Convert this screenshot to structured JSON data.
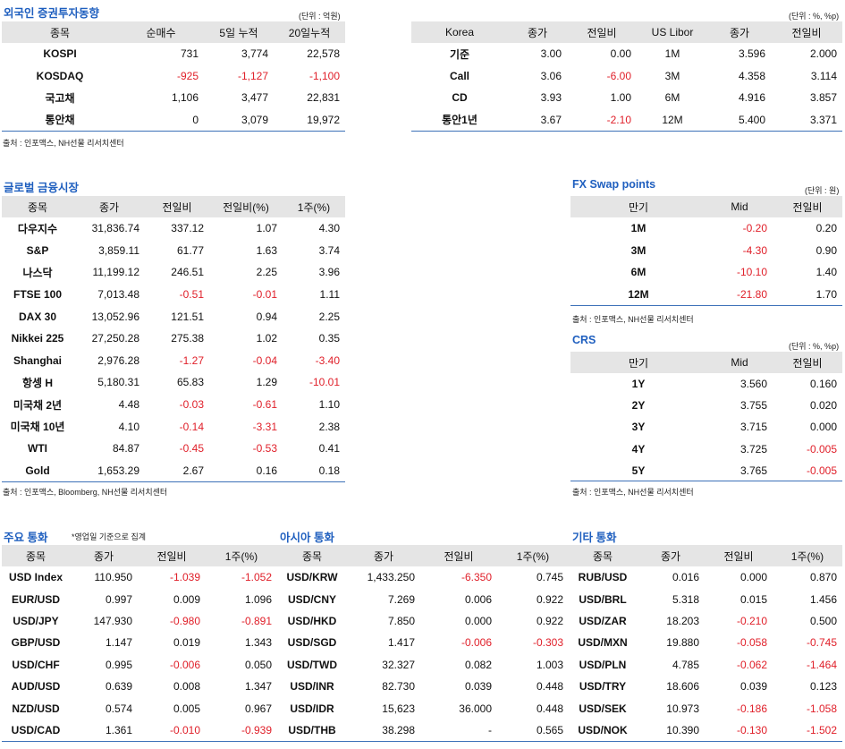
{
  "foreign": {
    "title": "외국인 증권투자동향",
    "unit": "(단위 : 억원)",
    "headers": [
      "종목",
      "순매수",
      "5일 누적",
      "20일누적"
    ],
    "rows": [
      [
        "KOSPI",
        "731",
        "3,774",
        "22,578"
      ],
      [
        "KOSDAQ",
        "-925",
        "-1,127",
        "-1,100"
      ],
      [
        "국고채",
        "1,106",
        "3,477",
        "22,831"
      ],
      [
        "통안채",
        "0",
        "3,079",
        "19,972"
      ]
    ],
    "source": "출처 : 인포맥스, NH선물 리서치센터"
  },
  "rates": {
    "unit": "(단위 : %, %p)",
    "headers": [
      "Korea",
      "종가",
      "전일비",
      "US Libor",
      "종가",
      "전일비"
    ],
    "rows": [
      [
        "기준",
        "3.00",
        "0.00",
        "1M",
        "3.596",
        "2.000"
      ],
      [
        "Call",
        "3.06",
        "-6.00",
        "3M",
        "4.358",
        "3.114"
      ],
      [
        "CD",
        "3.93",
        "1.00",
        "6M",
        "4.916",
        "3.857"
      ],
      [
        "통안1년",
        "3.67",
        "-2.10",
        "12M",
        "5.400",
        "3.371"
      ]
    ]
  },
  "global": {
    "title": "글로벌 금융시장",
    "headers": [
      "종목",
      "종가",
      "전일비",
      "전일비(%)",
      "1주(%)"
    ],
    "rows": [
      [
        "다우지수",
        "31,836.74",
        "337.12",
        "1.07",
        "4.30"
      ],
      [
        "S&P",
        "3,859.11",
        "61.77",
        "1.63",
        "3.74"
      ],
      [
        "나스닥",
        "11,199.12",
        "246.51",
        "2.25",
        "3.96"
      ],
      [
        "FTSE 100",
        "7,013.48",
        "-0.51",
        "-0.01",
        "1.11"
      ],
      [
        "DAX 30",
        "13,052.96",
        "121.51",
        "0.94",
        "2.25"
      ],
      [
        "Nikkei 225",
        "27,250.28",
        "275.38",
        "1.02",
        "0.35"
      ],
      [
        "Shanghai",
        "2,976.28",
        "-1.27",
        "-0.04",
        "-3.40"
      ],
      [
        "항셍 H",
        "5,180.31",
        "65.83",
        "1.29",
        "-10.01"
      ],
      [
        "미국채 2년",
        "4.48",
        "-0.03",
        "-0.61",
        "1.10"
      ],
      [
        "미국채 10년",
        "4.10",
        "-0.14",
        "-3.31",
        "2.38"
      ],
      [
        "WTI",
        "84.87",
        "-0.45",
        "-0.53",
        "0.41"
      ],
      [
        "Gold",
        "1,653.29",
        "2.67",
        "0.16",
        "0.18"
      ]
    ],
    "source": "출처 : 인포맥스, Bloomberg, NH선물 리서치센터"
  },
  "fxswap": {
    "title": "FX Swap points",
    "unit": "(단위 : 원)",
    "headers": [
      "만기",
      "Mid",
      "전일비"
    ],
    "rows": [
      [
        "1M",
        "-0.20",
        "0.20"
      ],
      [
        "3M",
        "-4.30",
        "0.90"
      ],
      [
        "6M",
        "-10.10",
        "1.40"
      ],
      [
        "12M",
        "-21.80",
        "1.70"
      ]
    ],
    "source": "출처 : 인포맥스, NH선물 리서치센터"
  },
  "crs": {
    "title": "CRS",
    "unit": "(단위 : %, %p)",
    "headers": [
      "만기",
      "Mid",
      "전일비"
    ],
    "rows": [
      [
        "1Y",
        "3.560",
        "0.160"
      ],
      [
        "2Y",
        "3.755",
        "0.020"
      ],
      [
        "3Y",
        "3.715",
        "0.000"
      ],
      [
        "4Y",
        "3.725",
        "-0.005"
      ],
      [
        "5Y",
        "3.765",
        "-0.005"
      ]
    ],
    "source": "출처 : 인포맥스, NH선물 리서치센터"
  },
  "currency": {
    "major_title": "주요 통화",
    "major_memo": "*영업일 기준으로 집계",
    "asia_title": "아시아 통화",
    "other_title": "기타 통화",
    "headers": [
      "종목",
      "종가",
      "전일비",
      "1주(%)",
      "종목",
      "종가",
      "전일비",
      "1주(%)",
      "종목",
      "종가",
      "전일비",
      "1주(%)"
    ],
    "rows": [
      [
        "USD Index",
        "110.950",
        "-1.039",
        "-1.052",
        "USD/KRW",
        "1,433.250",
        "-6.350",
        "0.745",
        "RUB/USD",
        "0.016",
        "0.000",
        "0.870"
      ],
      [
        "EUR/USD",
        "0.997",
        "0.009",
        "1.096",
        "USD/CNY",
        "7.269",
        "0.006",
        "0.922",
        "USD/BRL",
        "5.318",
        "0.015",
        "1.456"
      ],
      [
        "USD/JPY",
        "147.930",
        "-0.980",
        "-0.891",
        "USD/HKD",
        "7.850",
        "0.000",
        "0.922",
        "USD/ZAR",
        "18.203",
        "-0.210",
        "0.500"
      ],
      [
        "GBP/USD",
        "1.147",
        "0.019",
        "1.343",
        "USD/SGD",
        "1.417",
        "-0.006",
        "-0.303",
        "USD/MXN",
        "19.880",
        "-0.058",
        "-0.745"
      ],
      [
        "USD/CHF",
        "0.995",
        "-0.006",
        "0.050",
        "USD/TWD",
        "32.327",
        "0.082",
        "1.003",
        "USD/PLN",
        "4.785",
        "-0.062",
        "-1.464"
      ],
      [
        "AUD/USD",
        "0.639",
        "0.008",
        "1.347",
        "USD/INR",
        "82.730",
        "0.039",
        "0.448",
        "USD/TRY",
        "18.606",
        "0.039",
        "0.123"
      ],
      [
        "NZD/USD",
        "0.574",
        "0.005",
        "0.967",
        "USD/IDR",
        "15,623",
        "36.000",
        "0.448",
        "USD/SEK",
        "10.973",
        "-0.186",
        "-1.058"
      ],
      [
        "USD/CAD",
        "1.361",
        "-0.010",
        "-0.939",
        "USD/THB",
        "38.298",
        "-",
        "0.565",
        "USD/NOK",
        "10.390",
        "-0.130",
        "-1.502"
      ]
    ]
  },
  "colors": {
    "title_blue": "#1f5fbf",
    "negative_red": "#e0202a",
    "header_gray": "#e5e5e5"
  }
}
